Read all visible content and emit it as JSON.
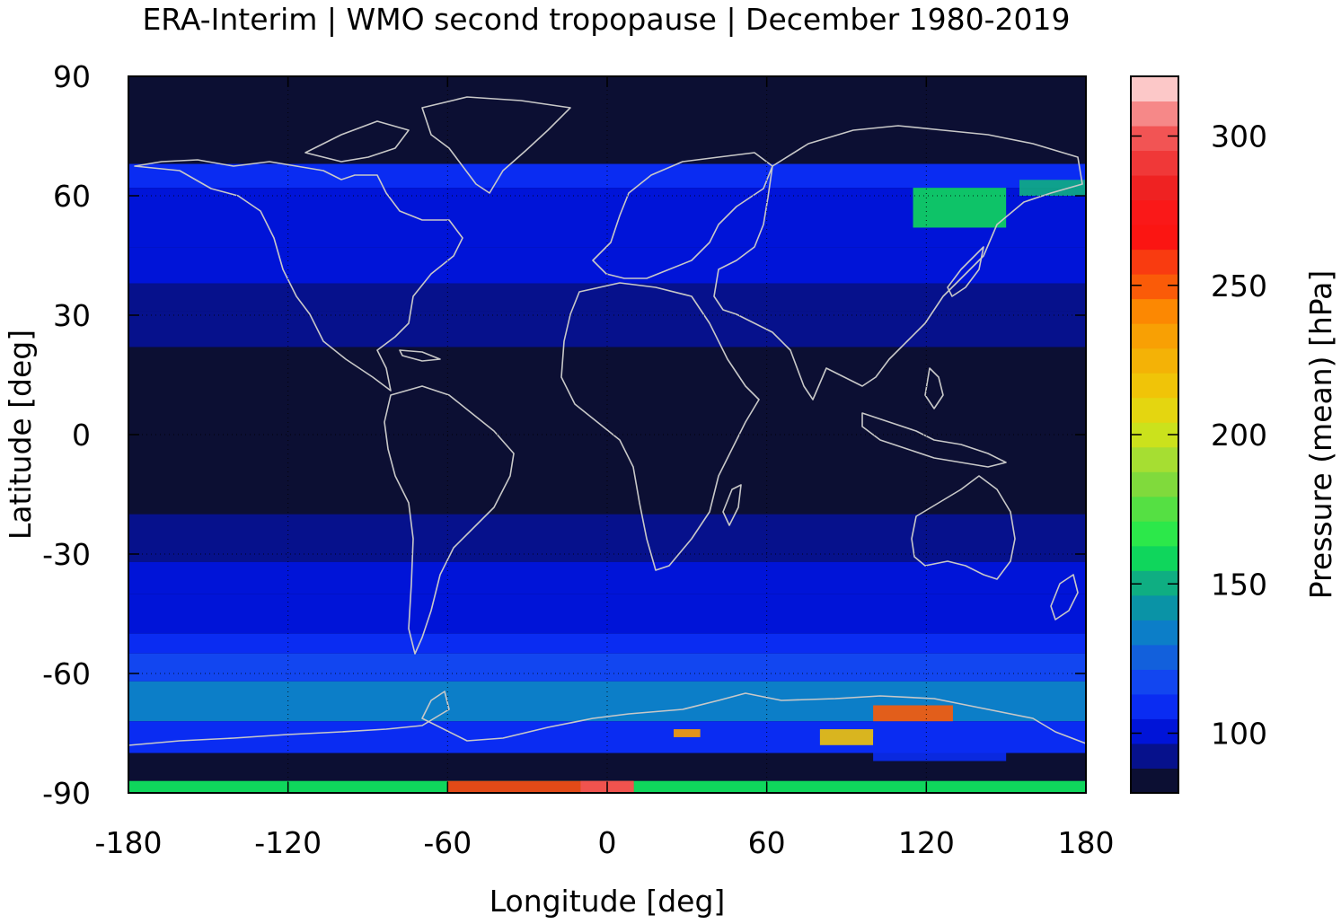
{
  "title": "ERA-Interim | WMO second tropopause | December 1980-2019",
  "chart_data": {
    "type": "heatmap",
    "title": "ERA-Interim | WMO second tropopause | December 1980-2019",
    "xlabel": "Longitude [deg]",
    "ylabel": "Latitude [deg]",
    "xlim": [
      -180,
      180
    ],
    "ylim": [
      -90,
      90
    ],
    "x_ticks": [
      -180,
      -120,
      -60,
      0,
      60,
      120,
      180
    ],
    "y_ticks": [
      90,
      60,
      30,
      0,
      -30,
      -60,
      -90
    ],
    "grid": true,
    "colorbar": {
      "label": "Pressure (mean) [hPa]",
      "range": [
        80,
        320
      ],
      "ticks": [
        100,
        150,
        200,
        250,
        300
      ],
      "colors": [
        "#0c0f33",
        "#06118c",
        "#0014d8",
        "#0a2cf2",
        "#1246f0",
        "#1260dc",
        "#0c7ec8",
        "#0a93a6",
        "#0fae82",
        "#0fd65c",
        "#2ce84a",
        "#55e043",
        "#80da3c",
        "#a6de32",
        "#cbe21c",
        "#e4d610",
        "#f0c408",
        "#f4b206",
        "#f8a004",
        "#fc8802",
        "#fa5b08",
        "#f93b10",
        "#fb1512",
        "#fa1818",
        "#ef2222",
        "#f03838",
        "#f25454",
        "#f68888",
        "#fcc8c8"
      ]
    },
    "latitude_bands": [
      {
        "lat_from": 90,
        "lat_to": 68,
        "value": 85
      },
      {
        "lat_from": 68,
        "lat_to": 62,
        "value": 105
      },
      {
        "lat_from": 62,
        "lat_to": 47,
        "value": 102
      },
      {
        "lat_from": 47,
        "lat_to": 38,
        "value": 98
      },
      {
        "lat_from": 38,
        "lat_to": 31,
        "value": 95
      },
      {
        "lat_from": 31,
        "lat_to": 22,
        "value": 90
      },
      {
        "lat_from": 22,
        "lat_to": -20,
        "value": 85
      },
      {
        "lat_from": -20,
        "lat_to": -32,
        "value": 92
      },
      {
        "lat_from": -32,
        "lat_to": -40,
        "value": 98
      },
      {
        "lat_from": -40,
        "lat_to": -50,
        "value": 102
      },
      {
        "lat_from": -50,
        "lat_to": -55,
        "value": 108
      },
      {
        "lat_from": -55,
        "lat_to": -62,
        "value": 118
      },
      {
        "lat_from": -62,
        "lat_to": -72,
        "value": 130
      },
      {
        "lat_from": -72,
        "lat_to": -80,
        "value": 112
      },
      {
        "lat_from": -80,
        "lat_to": -87,
        "value": 85
      },
      {
        "lat_from": -87,
        "lat_to": -90,
        "value": 160
      }
    ],
    "patches": [
      {
        "lon": [
          115,
          150
        ],
        "lat": [
          52,
          62
        ],
        "value": 160
      },
      {
        "lon": [
          155,
          180
        ],
        "lat": [
          60,
          64
        ],
        "value": 150
      },
      {
        "lon": [
          -60,
          10
        ],
        "lat": [
          -90,
          -87
        ],
        "value": 260
      },
      {
        "lon": [
          -10,
          10
        ],
        "lat": [
          -90,
          -87
        ],
        "value": 300
      },
      {
        "lon": [
          100,
          130
        ],
        "lat": [
          -72,
          -68
        ],
        "value": 250
      },
      {
        "lon": [
          80,
          100
        ],
        "lat": [
          -78,
          -74
        ],
        "value": 220
      },
      {
        "lon": [
          25,
          35
        ],
        "lat": [
          -76,
          -74
        ],
        "value": 230
      },
      {
        "lon": [
          100,
          150
        ],
        "lat": [
          -82,
          -76
        ],
        "value": 110
      }
    ]
  }
}
